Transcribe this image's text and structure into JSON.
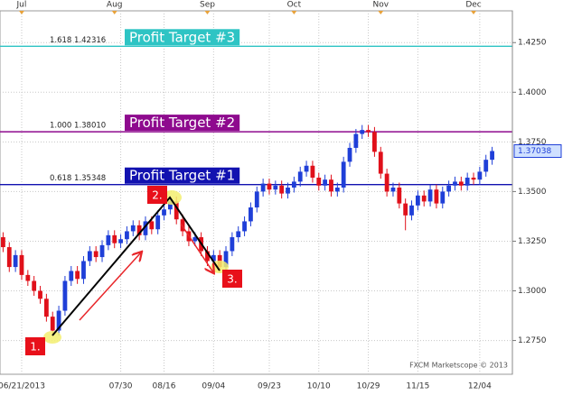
{
  "chart_data": {
    "type": "candlestick",
    "ylim": [
      1.258,
      1.441
    ],
    "yticks": [
      {
        "value": 1.275,
        "label": "1.2750"
      },
      {
        "value": 1.3,
        "label": "1.3000"
      },
      {
        "value": 1.325,
        "label": "1.3250"
      },
      {
        "value": 1.35,
        "label": "1.3500"
      },
      {
        "value": 1.375,
        "label": "1.3750"
      },
      {
        "value": 1.4,
        "label": "1.4000"
      },
      {
        "value": 1.425,
        "label": "1.4250"
      }
    ],
    "grid": true,
    "up_color": "#1f3fd8",
    "down_color": "#e0101a",
    "categories": [
      null,
      null,
      null,
      "06/21/2013",
      null,
      null,
      null,
      null,
      null,
      null,
      null,
      null,
      null,
      null,
      null,
      null,
      null,
      null,
      null,
      "07/30",
      null,
      null,
      null,
      null,
      null,
      null,
      "08/16",
      null,
      null,
      null,
      null,
      null,
      null,
      null,
      "09/04",
      null,
      null,
      null,
      null,
      null,
      null,
      null,
      null,
      "09/23",
      null,
      null,
      null,
      null,
      null,
      null,
      null,
      "10/10",
      null,
      null,
      null,
      null,
      null,
      null,
      null,
      "10/29",
      null,
      null,
      null,
      null,
      null,
      null,
      null,
      "11/15",
      null,
      null,
      null,
      null,
      null,
      null,
      null,
      null,
      null,
      "12/04",
      null,
      null
    ],
    "top_categories": [
      null,
      null,
      null,
      "Jul",
      null,
      null,
      null,
      null,
      null,
      null,
      null,
      null,
      null,
      null,
      null,
      null,
      null,
      null,
      "Aug",
      null,
      null,
      null,
      null,
      null,
      null,
      null,
      null,
      null,
      null,
      null,
      null,
      null,
      null,
      "Sep",
      null,
      null,
      null,
      null,
      null,
      null,
      null,
      null,
      null,
      null,
      null,
      null,
      null,
      "Oct",
      null,
      null,
      null,
      null,
      null,
      null,
      null,
      null,
      null,
      null,
      null,
      null,
      null,
      "Nov",
      null,
      null,
      null,
      null,
      null,
      null,
      null,
      null,
      null,
      null,
      null,
      null,
      null,
      null,
      "Dec",
      null,
      null,
      null
    ],
    "ohlc": [
      [
        1.327,
        1.3295,
        1.3195,
        1.322
      ],
      [
        1.322,
        1.3245,
        1.3095,
        1.312
      ],
      [
        1.312,
        1.3205,
        1.3095,
        1.318
      ],
      [
        1.318,
        1.3205,
        1.3055,
        1.308
      ],
      [
        1.308,
        1.3105,
        1.3025,
        1.305
      ],
      [
        1.305,
        1.3075,
        1.2975,
        1.3
      ],
      [
        1.3,
        1.3025,
        1.2935,
        1.296
      ],
      [
        1.296,
        1.2985,
        1.2845,
        1.287
      ],
      [
        1.287,
        1.2895,
        1.2775,
        1.28
      ],
      [
        1.28,
        1.2925,
        1.2775,
        1.29
      ],
      [
        1.29,
        1.3075,
        1.2875,
        1.305
      ],
      [
        1.305,
        1.3125,
        1.3025,
        1.31
      ],
      [
        1.31,
        1.3125,
        1.3035,
        1.306
      ],
      [
        1.306,
        1.3175,
        1.3035,
        1.315
      ],
      [
        1.315,
        1.3225,
        1.3125,
        1.32
      ],
      [
        1.32,
        1.3225,
        1.3145,
        1.317
      ],
      [
        1.317,
        1.3255,
        1.3145,
        1.323
      ],
      [
        1.323,
        1.3305,
        1.3205,
        1.328
      ],
      [
        1.328,
        1.3305,
        1.3215,
        1.324
      ],
      [
        1.324,
        1.3285,
        1.3215,
        1.326
      ],
      [
        1.326,
        1.3325,
        1.3235,
        1.33
      ],
      [
        1.33,
        1.3355,
        1.3275,
        1.333
      ],
      [
        1.333,
        1.3355,
        1.3255,
        1.328
      ],
      [
        1.328,
        1.3375,
        1.3255,
        1.335
      ],
      [
        1.335,
        1.3375,
        1.3285,
        1.331
      ],
      [
        1.331,
        1.3405,
        1.3285,
        1.338
      ],
      [
        1.338,
        1.3435,
        1.3355,
        1.341
      ],
      [
        1.341,
        1.3475,
        1.3385,
        1.345
      ],
      [
        1.345,
        1.3475,
        1.3335,
        1.336
      ],
      [
        1.336,
        1.3385,
        1.3275,
        1.33
      ],
      [
        1.33,
        1.3325,
        1.3225,
        1.325
      ],
      [
        1.325,
        1.3295,
        1.3225,
        1.327
      ],
      [
        1.327,
        1.3295,
        1.3175,
        1.32
      ],
      [
        1.32,
        1.3225,
        1.3125,
        1.315
      ],
      [
        1.315,
        1.3205,
        1.3125,
        1.318
      ],
      [
        1.318,
        1.3205,
        1.3095,
        1.312
      ],
      [
        1.312,
        1.3225,
        1.3095,
        1.32
      ],
      [
        1.32,
        1.3295,
        1.3175,
        1.327
      ],
      [
        1.327,
        1.3325,
        1.3245,
        1.33
      ],
      [
        1.33,
        1.3375,
        1.3275,
        1.335
      ],
      [
        1.335,
        1.3445,
        1.3325,
        1.342
      ],
      [
        1.342,
        1.3525,
        1.3395,
        1.35
      ],
      [
        1.35,
        1.3565,
        1.3475,
        1.354
      ],
      [
        1.354,
        1.3565,
        1.3485,
        1.351
      ],
      [
        1.351,
        1.3555,
        1.3485,
        1.353
      ],
      [
        1.353,
        1.3555,
        1.3465,
        1.349
      ],
      [
        1.349,
        1.3545,
        1.3465,
        1.352
      ],
      [
        1.352,
        1.3575,
        1.3495,
        1.355
      ],
      [
        1.355,
        1.3625,
        1.3525,
        1.36
      ],
      [
        1.36,
        1.3655,
        1.3575,
        1.363
      ],
      [
        1.363,
        1.3655,
        1.3545,
        1.357
      ],
      [
        1.357,
        1.3595,
        1.3505,
        1.353
      ],
      [
        1.353,
        1.3585,
        1.3505,
        1.356
      ],
      [
        1.356,
        1.3585,
        1.3475,
        1.35
      ],
      [
        1.35,
        1.3545,
        1.3475,
        1.352
      ],
      [
        1.352,
        1.3675,
        1.3495,
        1.365
      ],
      [
        1.365,
        1.3745,
        1.3625,
        1.372
      ],
      [
        1.372,
        1.3815,
        1.3695,
        1.379
      ],
      [
        1.379,
        1.3835,
        1.3765,
        1.381
      ],
      [
        1.381,
        1.3835,
        1.3775,
        1.38
      ],
      [
        1.38,
        1.3825,
        1.3675,
        1.37
      ],
      [
        1.37,
        1.3725,
        1.3565,
        1.359
      ],
      [
        1.359,
        1.3615,
        1.3475,
        1.35
      ],
      [
        1.35,
        1.3545,
        1.3475,
        1.352
      ],
      [
        1.352,
        1.3545,
        1.3415,
        1.344
      ],
      [
        1.344,
        1.3465,
        1.3305,
        1.338
      ],
      [
        1.338,
        1.3455,
        1.3355,
        1.343
      ],
      [
        1.343,
        1.3505,
        1.3405,
        1.348
      ],
      [
        1.348,
        1.3505,
        1.3425,
        1.345
      ],
      [
        1.345,
        1.3535,
        1.3425,
        1.351
      ],
      [
        1.351,
        1.3535,
        1.3415,
        1.344
      ],
      [
        1.344,
        1.3525,
        1.3415,
        1.35
      ],
      [
        1.35,
        1.3555,
        1.3475,
        1.353
      ],
      [
        1.353,
        1.3575,
        1.3505,
        1.355
      ],
      [
        1.355,
        1.3575,
        1.3505,
        1.353
      ],
      [
        1.353,
        1.3595,
        1.3505,
        1.357
      ],
      [
        1.357,
        1.3595,
        1.3535,
        1.356
      ],
      [
        1.356,
        1.3625,
        1.3535,
        1.36
      ],
      [
        1.36,
        1.3685,
        1.3575,
        1.366
      ],
      [
        1.366,
        1.3725,
        1.3635,
        1.3704
      ]
    ],
    "last_price": 1.37038,
    "levels": [
      {
        "label": "1.618 1.42316",
        "value": 1.42316,
        "target": "Profit Target #3",
        "color": "#2ec4c4"
      },
      {
        "label": "1.000 1.38010",
        "value": 1.3801,
        "target": "Profit Target #2",
        "color": "#8e0a8e"
      },
      {
        "label": "0.618 1.35348",
        "value": 1.35348,
        "target": "Profit Target #1",
        "color": "#1212b0"
      }
    ],
    "annotations": [
      "1.",
      "2.",
      "3."
    ],
    "footer": "FXCM Marketscope © 2013"
  }
}
